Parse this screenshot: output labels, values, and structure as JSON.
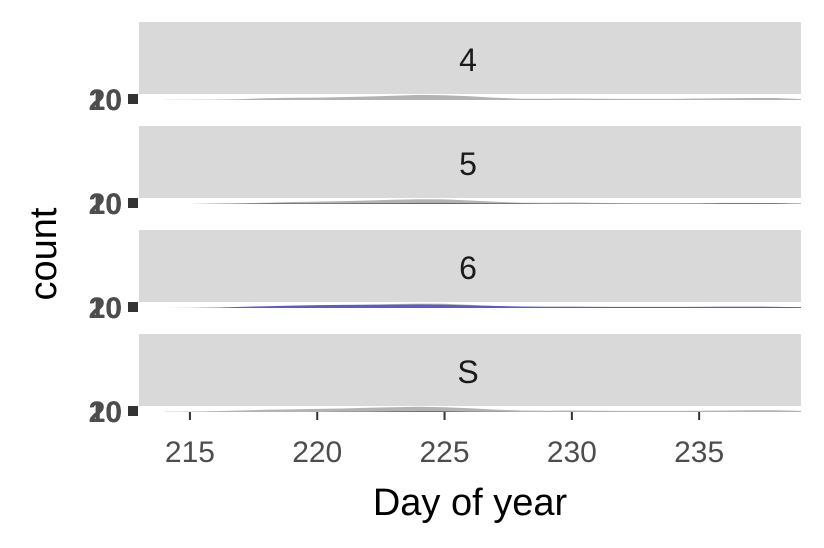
{
  "chart_data": {
    "type": "area",
    "facet_layout": "stacked-rows",
    "xlabel": "Day of year",
    "ylabel": "count",
    "xlim": [
      213,
      239
    ],
    "x_ticks": [
      215,
      220,
      225,
      230,
      235
    ],
    "y_tick_labels_overlapping": [
      "0",
      "10",
      "20"
    ],
    "grid": false,
    "colors": {
      "strip_bg": "#d9d9d9",
      "grey_fill": "#b3b3b3",
      "blue_fill": "#5a5ad2",
      "tick_mark": "#333333",
      "tick_text": "#4d4d4d"
    },
    "x": [
      214,
      215,
      216,
      217,
      218,
      219,
      220,
      221,
      222,
      223,
      224,
      225,
      226,
      227,
      228,
      229,
      230,
      231,
      232,
      233,
      234,
      235,
      236,
      237,
      238,
      239
    ],
    "panels": [
      {
        "label": "4",
        "series": [
          {
            "name": "grey",
            "values": [
              0.05,
              0.1,
              0.2,
              0.4,
              0.8,
              1.0,
              1.1,
              1.3,
              1.6,
              1.9,
              2.3,
              2.2,
              1.7,
              1.0,
              0.6,
              0.6,
              0.7,
              0.6,
              0.5,
              0.5,
              0.5,
              0.7,
              0.8,
              0.9,
              0.9,
              0.4
            ]
          }
        ]
      },
      {
        "label": "5",
        "series": [
          {
            "name": "grey",
            "values": [
              0.0,
              0.0,
              0.1,
              0.3,
              0.6,
              0.9,
              1.1,
              1.3,
              1.6,
              1.9,
              2.2,
              2.1,
              1.6,
              1.0,
              0.6,
              0.6,
              0.7,
              0.5,
              0.4,
              0.3,
              0.3,
              0.4,
              0.5,
              0.5,
              0.4,
              0.2
            ]
          },
          {
            "name": "blue",
            "values": [
              0.0,
              0.0,
              0.1,
              0.2,
              0.3,
              0.3,
              0.3,
              0.3,
              0.4,
              0.4,
              0.5,
              0.5,
              0.4,
              0.3,
              0.3,
              0.2,
              0.2,
              0.2,
              0.2,
              0.2,
              0.2,
              0.2,
              0.3,
              0.3,
              0.3,
              0.2
            ]
          }
        ]
      },
      {
        "label": "6",
        "series": [
          {
            "name": "grey",
            "values": [
              0.0,
              0.0,
              0.1,
              0.3,
              0.6,
              0.9,
              1.1,
              1.3,
              1.5,
              1.8,
              2.0,
              1.9,
              1.4,
              0.9,
              0.5,
              0.5,
              0.6,
              0.5,
              0.4,
              0.4,
              0.4,
              0.5,
              0.6,
              0.6,
              0.5,
              0.3
            ]
          },
          {
            "name": "blue",
            "values": [
              0.0,
              0.05,
              0.2,
              0.5,
              0.8,
              1.1,
              1.3,
              1.4,
              1.5,
              1.5,
              1.6,
              1.5,
              1.2,
              0.9,
              0.7,
              0.6,
              0.6,
              0.5,
              0.5,
              0.5,
              0.5,
              0.5,
              0.6,
              0.6,
              0.5,
              0.4
            ]
          }
        ]
      },
      {
        "label": "S",
        "series": [
          {
            "name": "grey",
            "values": [
              0.1,
              0.2,
              0.4,
              0.7,
              1.0,
              1.2,
              1.4,
              1.6,
              1.9,
              2.2,
              2.4,
              2.2,
              1.7,
              1.1,
              0.7,
              0.6,
              0.7,
              0.6,
              0.5,
              0.5,
              0.5,
              0.6,
              0.7,
              0.8,
              0.8,
              0.5
            ]
          },
          {
            "name": "blue",
            "values": [
              0.0,
              0.0,
              0.0,
              0.0,
              0.0,
              0.0,
              0.0,
              0.1,
              0.2,
              0.3,
              0.4,
              0.4,
              0.2,
              0.1,
              0.0,
              0.0,
              0.0,
              0.0,
              0.0,
              0.0,
              0.0,
              0.0,
              0.0,
              0.0,
              0.0,
              0.0
            ]
          }
        ]
      }
    ]
  }
}
